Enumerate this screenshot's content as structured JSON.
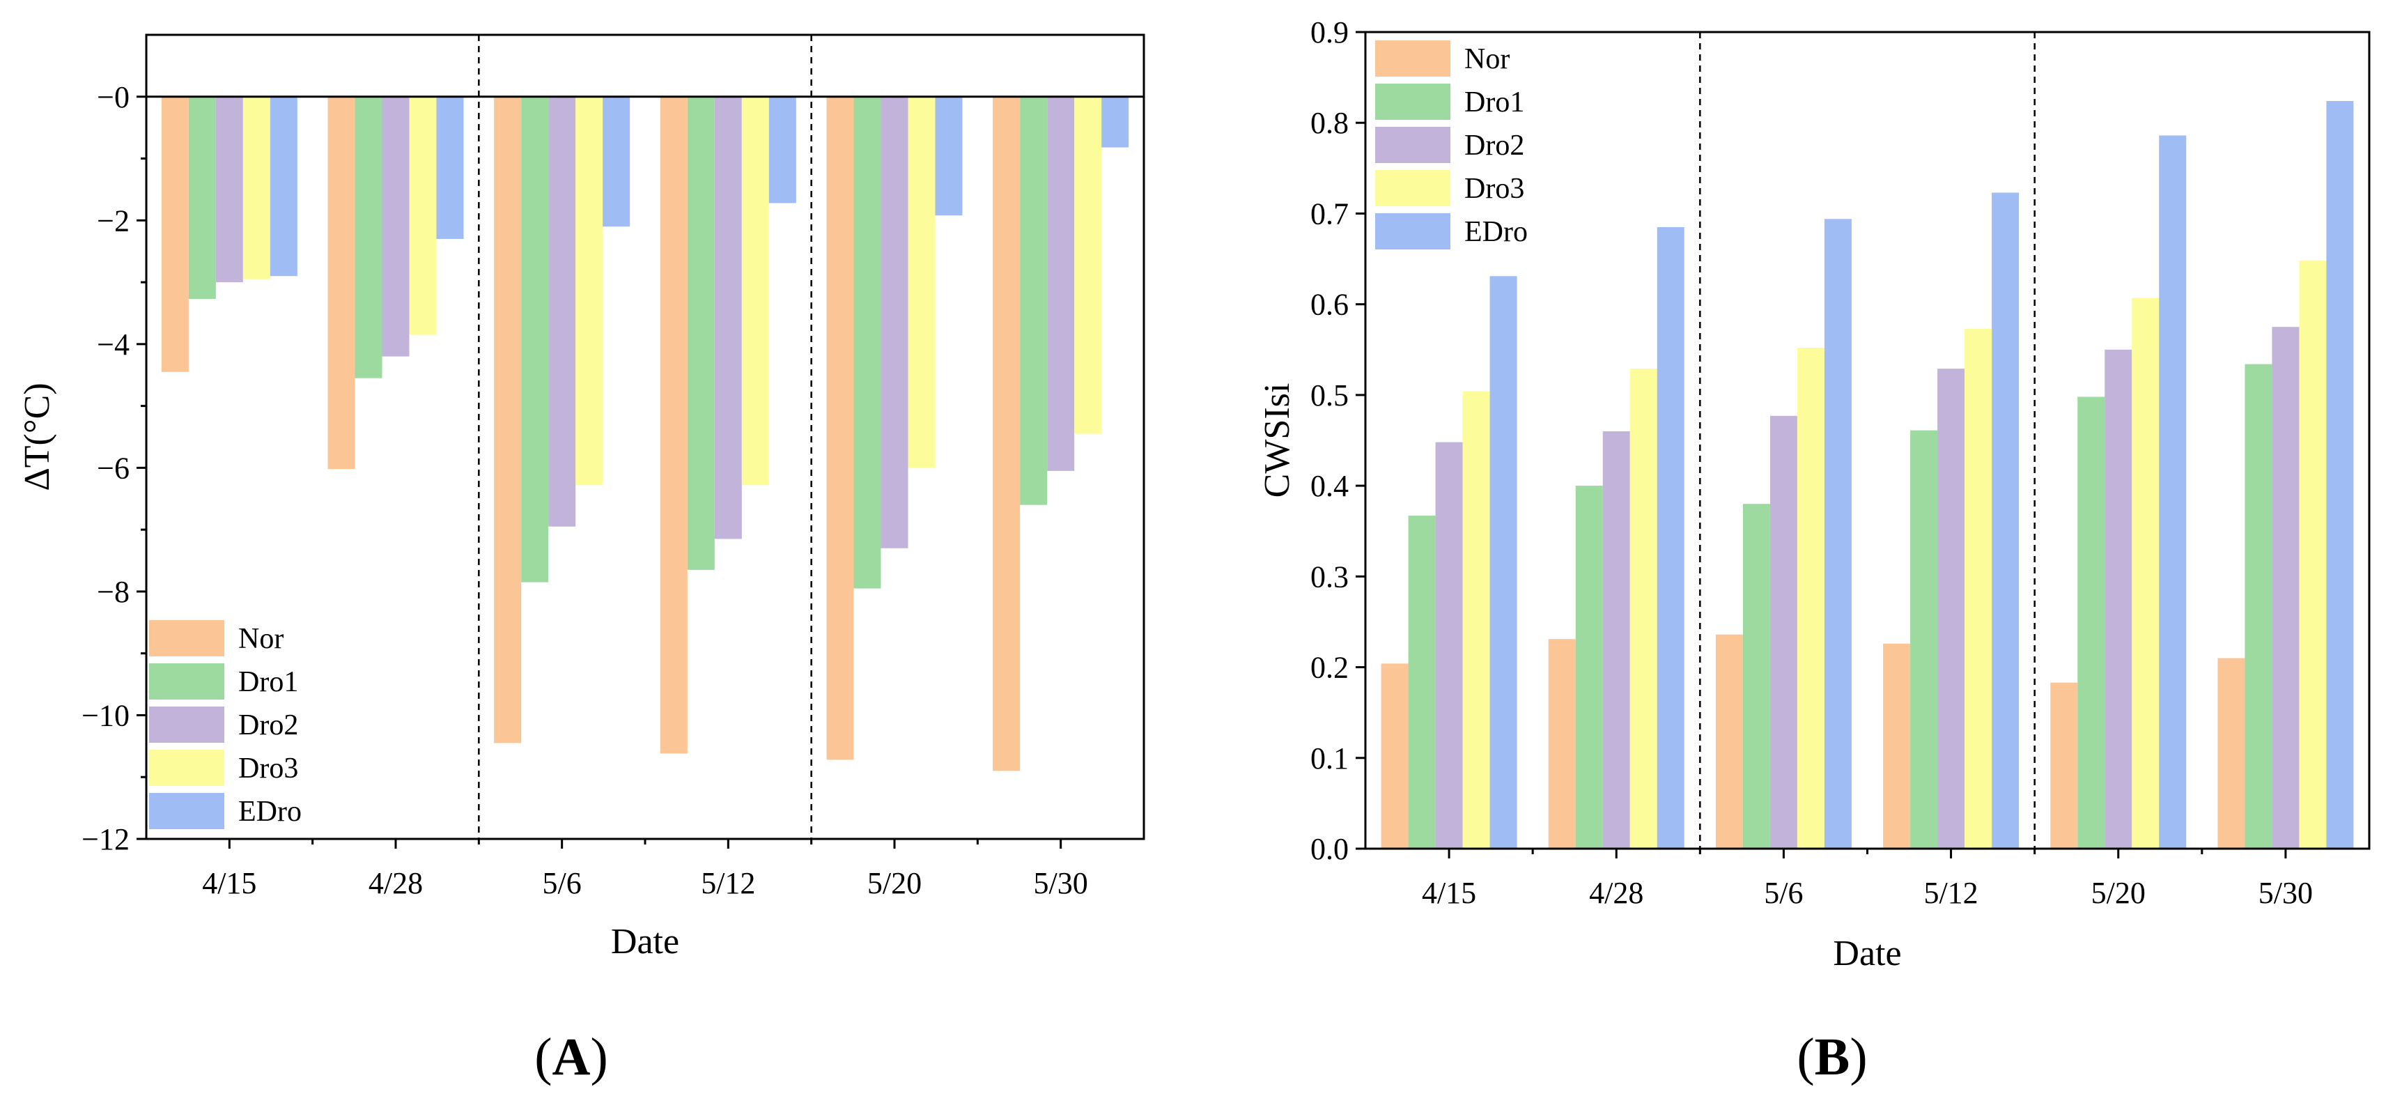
{
  "chart_data": [
    {
      "type": "bar",
      "panel_label": "A",
      "title": "",
      "xlabel": "Date",
      "ylabel": "ΔT(°C)",
      "categories": [
        "4/15",
        "4/28",
        "5/6",
        "5/12",
        "5/20",
        "5/30"
      ],
      "ylim": [
        -12,
        1
      ],
      "yticks": [
        0,
        -2,
        -4,
        -6,
        -8,
        -10,
        -12
      ],
      "ytick_labels": [
        "−0",
        "−2",
        "−4",
        "−6",
        "−8",
        "−10",
        "−12"
      ],
      "separators_after": [
        1,
        3
      ],
      "legend_position": "bottom-left",
      "series": [
        {
          "name": "Nor",
          "color": "#FCC595",
          "values": [
            -4.45,
            -6.02,
            -10.45,
            -10.62,
            -10.72,
            -10.9
          ]
        },
        {
          "name": "Dro1",
          "color": "#9DDA9F",
          "values": [
            -3.27,
            -4.55,
            -7.85,
            -7.65,
            -7.95,
            -6.6
          ]
        },
        {
          "name": "Dro2",
          "color": "#C2B3DA",
          "values": [
            -3.0,
            -4.2,
            -6.95,
            -7.15,
            -7.3,
            -6.05
          ]
        },
        {
          "name": "Dro3",
          "color": "#FDFC9A",
          "values": [
            -2.95,
            -3.85,
            -6.28,
            -6.28,
            -6.0,
            -5.45
          ]
        },
        {
          "name": "EDro",
          "color": "#A0BCF4",
          "values": [
            -2.9,
            -2.3,
            -2.1,
            -1.72,
            -1.92,
            -0.82
          ]
        }
      ]
    },
    {
      "type": "bar",
      "panel_label": "B",
      "title": "",
      "xlabel": "Date",
      "ylabel": "CWSIsi",
      "categories": [
        "4/15",
        "4/28",
        "5/6",
        "5/12",
        "5/20",
        "5/30"
      ],
      "ylim": [
        0,
        0.9
      ],
      "yticks": [
        0,
        0.1,
        0.2,
        0.3,
        0.4,
        0.5,
        0.6,
        0.7,
        0.8,
        0.9
      ],
      "ytick_labels": [
        "0.0",
        "0.1",
        "0.2",
        "0.3",
        "0.4",
        "0.5",
        "0.6",
        "0.7",
        "0.8",
        "0.9"
      ],
      "separators_after": [
        1,
        3
      ],
      "legend_position": "top-left",
      "series": [
        {
          "name": "Nor",
          "color": "#FCC595",
          "values": [
            0.204,
            0.231,
            0.236,
            0.226,
            0.183,
            0.21
          ]
        },
        {
          "name": "Dro1",
          "color": "#9DDA9F",
          "values": [
            0.367,
            0.4,
            0.38,
            0.461,
            0.498,
            0.534
          ]
        },
        {
          "name": "Dro2",
          "color": "#C2B3DA",
          "values": [
            0.448,
            0.46,
            0.477,
            0.529,
            0.55,
            0.575
          ]
        },
        {
          "name": "Dro3",
          "color": "#FDFC9A",
          "values": [
            0.504,
            0.529,
            0.552,
            0.573,
            0.607,
            0.648
          ]
        },
        {
          "name": "EDro",
          "color": "#A0BCF4",
          "values": [
            0.631,
            0.685,
            0.694,
            0.723,
            0.786,
            0.824
          ]
        }
      ]
    }
  ]
}
